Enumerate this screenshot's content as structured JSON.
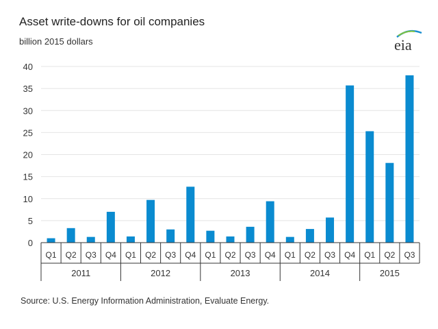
{
  "chart_data": {
    "type": "bar",
    "title": "Asset write-downs for oil companies",
    "subtitle": "billion 2015 dollars",
    "ylabel": "",
    "xlabel": "",
    "ylim": [
      0,
      40
    ],
    "yticks": [
      0,
      5,
      10,
      15,
      20,
      25,
      30,
      35,
      40
    ],
    "grid": true,
    "bar_color": "#0a8bd0",
    "categories": [
      "Q1",
      "Q2",
      "Q3",
      "Q4",
      "Q1",
      "Q2",
      "Q3",
      "Q4",
      "Q1",
      "Q2",
      "Q3",
      "Q4",
      "Q1",
      "Q2",
      "Q3",
      "Q4",
      "Q1",
      "Q2",
      "Q3"
    ],
    "groups": [
      {
        "label": "2011",
        "count": 4
      },
      {
        "label": "2012",
        "count": 4
      },
      {
        "label": "2013",
        "count": 4
      },
      {
        "label": "2014",
        "count": 4
      },
      {
        "label": "2015",
        "count": 3
      }
    ],
    "values": [
      1.0,
      3.3,
      1.3,
      7.0,
      1.4,
      9.7,
      3.0,
      12.7,
      2.7,
      1.4,
      3.6,
      9.4,
      1.3,
      3.1,
      5.7,
      35.7,
      25.3,
      18.1,
      38.0
    ]
  },
  "source": "Source:  U.S. Energy Information Administration, Evaluate Energy.",
  "logo": "eia"
}
